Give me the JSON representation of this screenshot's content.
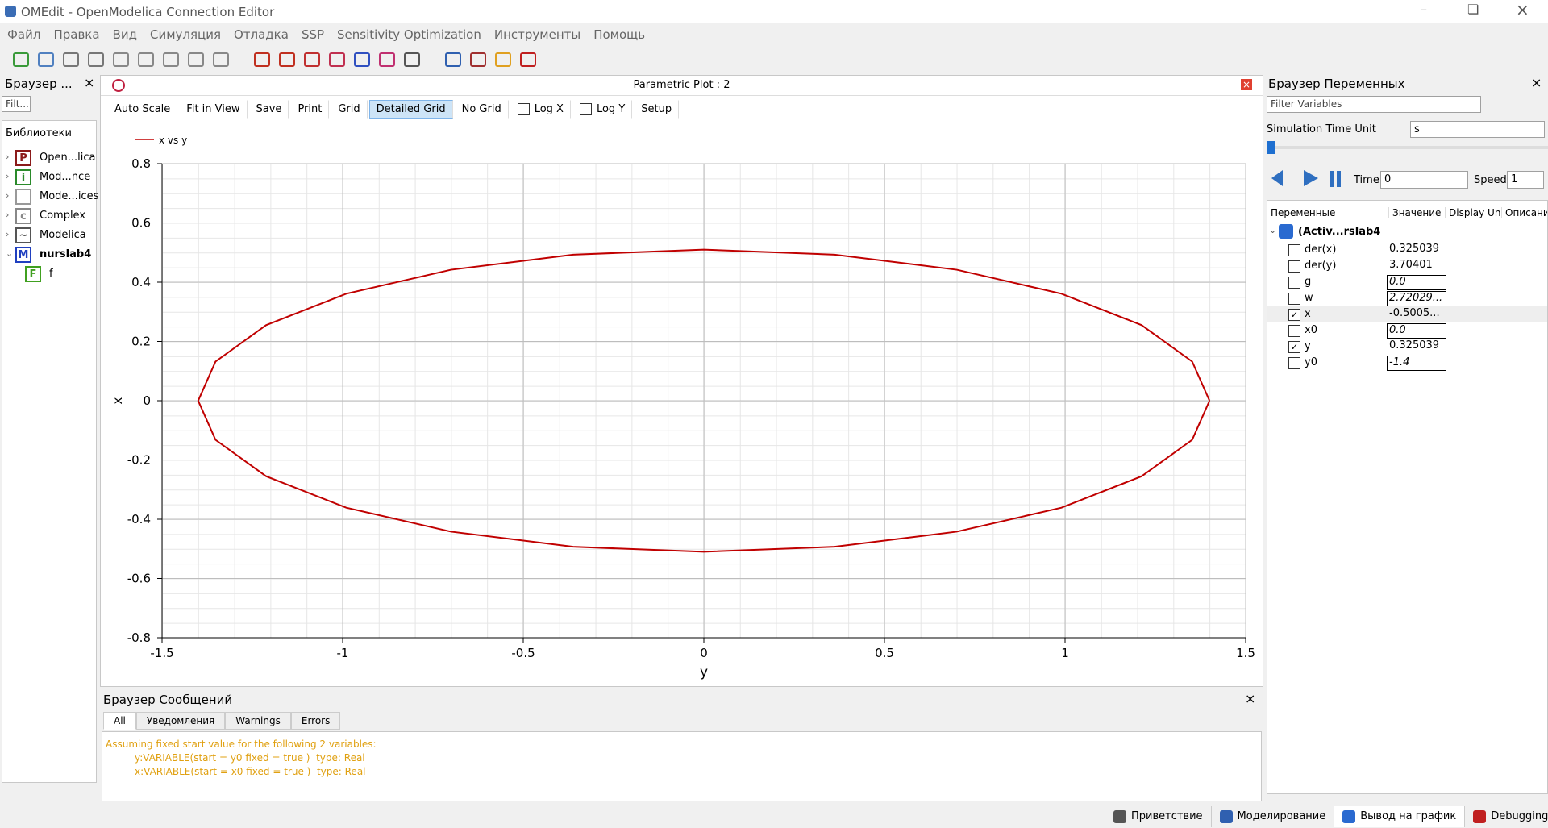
{
  "window": {
    "title": "OMEdit - OpenModelica Connection Editor"
  },
  "menu": [
    "Файл",
    "Правка",
    "Вид",
    "Симуляция",
    "Отладка",
    "SSP",
    "Sensitivity Optimization",
    "Инструменты",
    "Помощь"
  ],
  "libraries": {
    "title": "Браузер ...",
    "filter": "Filt...",
    "header": "Библиотеки",
    "items": [
      "Open...lica",
      "Mod...nce",
      "Mode...ices",
      "Complex",
      "Modelica",
      "nurslab4",
      "f"
    ]
  },
  "plot": {
    "title": "Parametric Plot : 2",
    "buttons": [
      "Auto Scale",
      "Fit in View",
      "Save",
      "Print",
      "Grid",
      "Detailed Grid",
      "No Grid",
      "Log X",
      "Log Y",
      "Setup"
    ]
  },
  "chart_data": {
    "type": "line",
    "x_label": "y",
    "y_label": "x",
    "x": [
      1.4,
      1.352,
      1.212,
      0.99,
      0.7,
      0.362,
      0,
      -0.362,
      -0.7,
      -0.99,
      -1.212,
      -1.352,
      -1.4,
      -1.352,
      -1.212,
      -0.99,
      -0.7,
      -0.362,
      0,
      0.362,
      0.7,
      0.99,
      1.212,
      1.352,
      1.4
    ],
    "series": [
      {
        "name": "x vs y",
        "color": "#c00000",
        "values": [
          0,
          0.132,
          0.255,
          0.361,
          0.442,
          0.493,
          0.51,
          0.493,
          0.442,
          0.361,
          0.255,
          0.132,
          0,
          -0.132,
          -0.255,
          -0.361,
          -0.442,
          -0.493,
          -0.51,
          -0.493,
          -0.442,
          -0.361,
          -0.255,
          -0.132,
          0
        ]
      }
    ],
    "xlim": [
      -1.5,
      1.5
    ],
    "xticks": [
      -1.5,
      -1,
      -0.5,
      0,
      0.5,
      1,
      1.5
    ],
    "ylim": [
      -0.8,
      0.8
    ],
    "yticks": [
      -0.8,
      -0.6,
      -0.4,
      -0.2,
      0,
      0.2,
      0.4,
      0.6,
      0.8
    ],
    "grid": true
  },
  "variables": {
    "title": "Браузер Переменных",
    "filter": "Filter Variables",
    "time_unit_label": "Simulation Time Unit",
    "time_unit": "s",
    "time_label": "Time:",
    "time": "0",
    "speed_label": "Speed:",
    "speed": "1",
    "columns": [
      "Переменные",
      "Значение",
      "Display Un",
      "Описание"
    ],
    "root": "(Activ...rslab4",
    "rows": [
      {
        "name": "der(x)",
        "value": "0.325039",
        "checked": false,
        "editable": false
      },
      {
        "name": "der(y)",
        "value": "3.70401",
        "checked": false,
        "editable": false
      },
      {
        "name": "g",
        "value": "0.0",
        "checked": false,
        "editable": true
      },
      {
        "name": "w",
        "value": "2.72029...",
        "checked": false,
        "editable": true
      },
      {
        "name": "x",
        "value": "-0.5005...",
        "checked": true,
        "editable": false
      },
      {
        "name": "x0",
        "value": "0.0",
        "checked": false,
        "editable": true
      },
      {
        "name": "y",
        "value": "0.325039",
        "checked": true,
        "editable": false
      },
      {
        "name": "y0",
        "value": "-1.4",
        "checked": false,
        "editable": true
      }
    ]
  },
  "messages": {
    "title": "Браузер Сообщений",
    "tabs": [
      "All",
      "Уведомления",
      "Warnings",
      "Errors"
    ],
    "lines": [
      "Assuming fixed start value for the following 2 variables:",
      "y:VARIABLE(start = y0 fixed = true )  type: Real",
      "x:VARIABLE(start = x0 fixed = true )  type: Real"
    ]
  },
  "status": [
    "Приветствие",
    "Моделирование",
    "Вывод на график",
    "Debugging"
  ]
}
